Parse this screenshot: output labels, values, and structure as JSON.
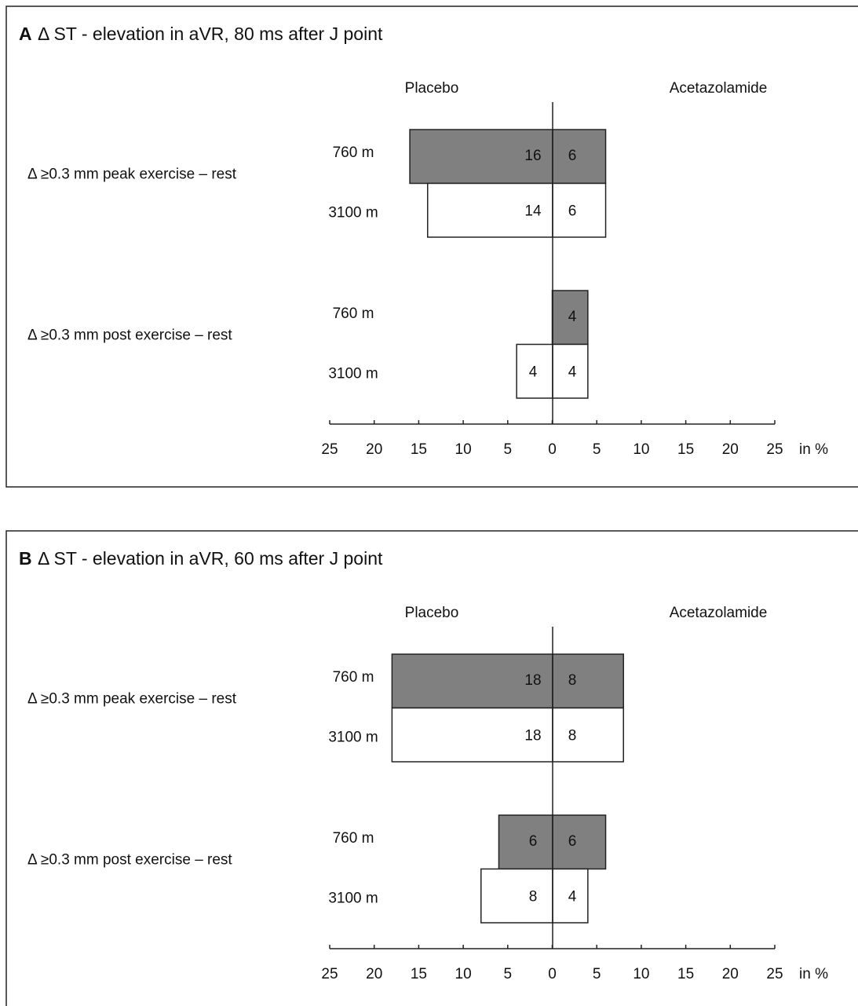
{
  "chart_data": [
    {
      "type": "butterfly-bar",
      "panel": "A",
      "title": "Δ ST - elevation in aVR, 80 ms after J point",
      "groups": [
        "Δ ≥0.3 mm peak exercise – rest",
        "Δ ≥0.3 mm post exercise – rest"
      ],
      "categories": [
        "760 m",
        "3100 m",
        "760 m",
        "3100 m"
      ],
      "colors": [
        "#808080",
        "#ffffff",
        "#808080",
        "#ffffff"
      ],
      "series": [
        {
          "name": "Placebo",
          "values": [
            16,
            14,
            0,
            4
          ]
        },
        {
          "name": "Acetazolamide",
          "values": [
            6,
            6,
            4,
            4
          ]
        }
      ],
      "xlabel": "in %",
      "xlim": [
        -25,
        25
      ],
      "xticks": [
        {
          "value": -25,
          "label": "25"
        },
        {
          "value": -20,
          "label": "20"
        },
        {
          "value": -15,
          "label": "15"
        },
        {
          "value": -10,
          "label": "10"
        },
        {
          "value": -5,
          "label": "5"
        },
        0,
        5,
        10,
        15,
        20,
        25
      ]
    },
    {
      "type": "butterfly-bar",
      "panel": "B",
      "title": "Δ ST - elevation in aVR, 60 ms after J point",
      "groups": [
        "Δ ≥0.3 mm peak exercise – rest",
        "Δ ≥0.3 mm post exercise – rest"
      ],
      "categories": [
        "760 m",
        "3100 m",
        "760 m",
        "3100 m"
      ],
      "colors": [
        "#808080",
        "#ffffff",
        "#808080",
        "#ffffff"
      ],
      "series": [
        {
          "name": "Placebo",
          "values": [
            18,
            18,
            6,
            8
          ]
        },
        {
          "name": "Acetazolamide",
          "values": [
            8,
            8,
            6,
            4
          ]
        }
      ],
      "xlabel": "in %",
      "xlim": [
        -25,
        25
      ],
      "xticks": [
        {
          "value": -25,
          "label": "25"
        },
        {
          "value": -20,
          "label": "20"
        },
        {
          "value": -15,
          "label": "15"
        },
        {
          "value": -10,
          "label": "10"
        },
        {
          "value": -5,
          "label": "5"
        },
        0,
        5,
        10,
        15,
        20,
        25
      ]
    }
  ]
}
